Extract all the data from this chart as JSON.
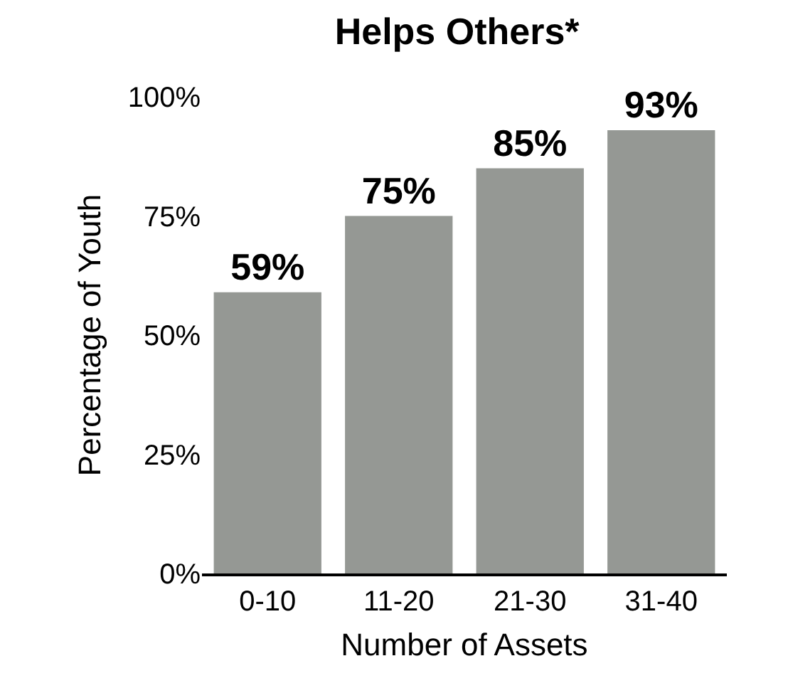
{
  "chart_data": {
    "type": "bar",
    "title": "Helps Others*",
    "xlabel": "Number of Assets",
    "ylabel": "Percentage of Youth",
    "categories": [
      "0-10",
      "11-20",
      "21-30",
      "31-40"
    ],
    "values": [
      59,
      75,
      85,
      93
    ],
    "color": "#959894",
    "value_labels": [
      "59%",
      "75%",
      "85%",
      "93%"
    ],
    "ylim": [
      0,
      100
    ],
    "yticks": [
      {
        "value": 0,
        "label": "0%"
      },
      {
        "value": 25,
        "label": "25%"
      },
      {
        "value": 50,
        "label": "50%"
      },
      {
        "value": 75,
        "label": "75%"
      },
      {
        "value": 100,
        "label": "100%"
      }
    ],
    "grid": false,
    "legend": false
  }
}
